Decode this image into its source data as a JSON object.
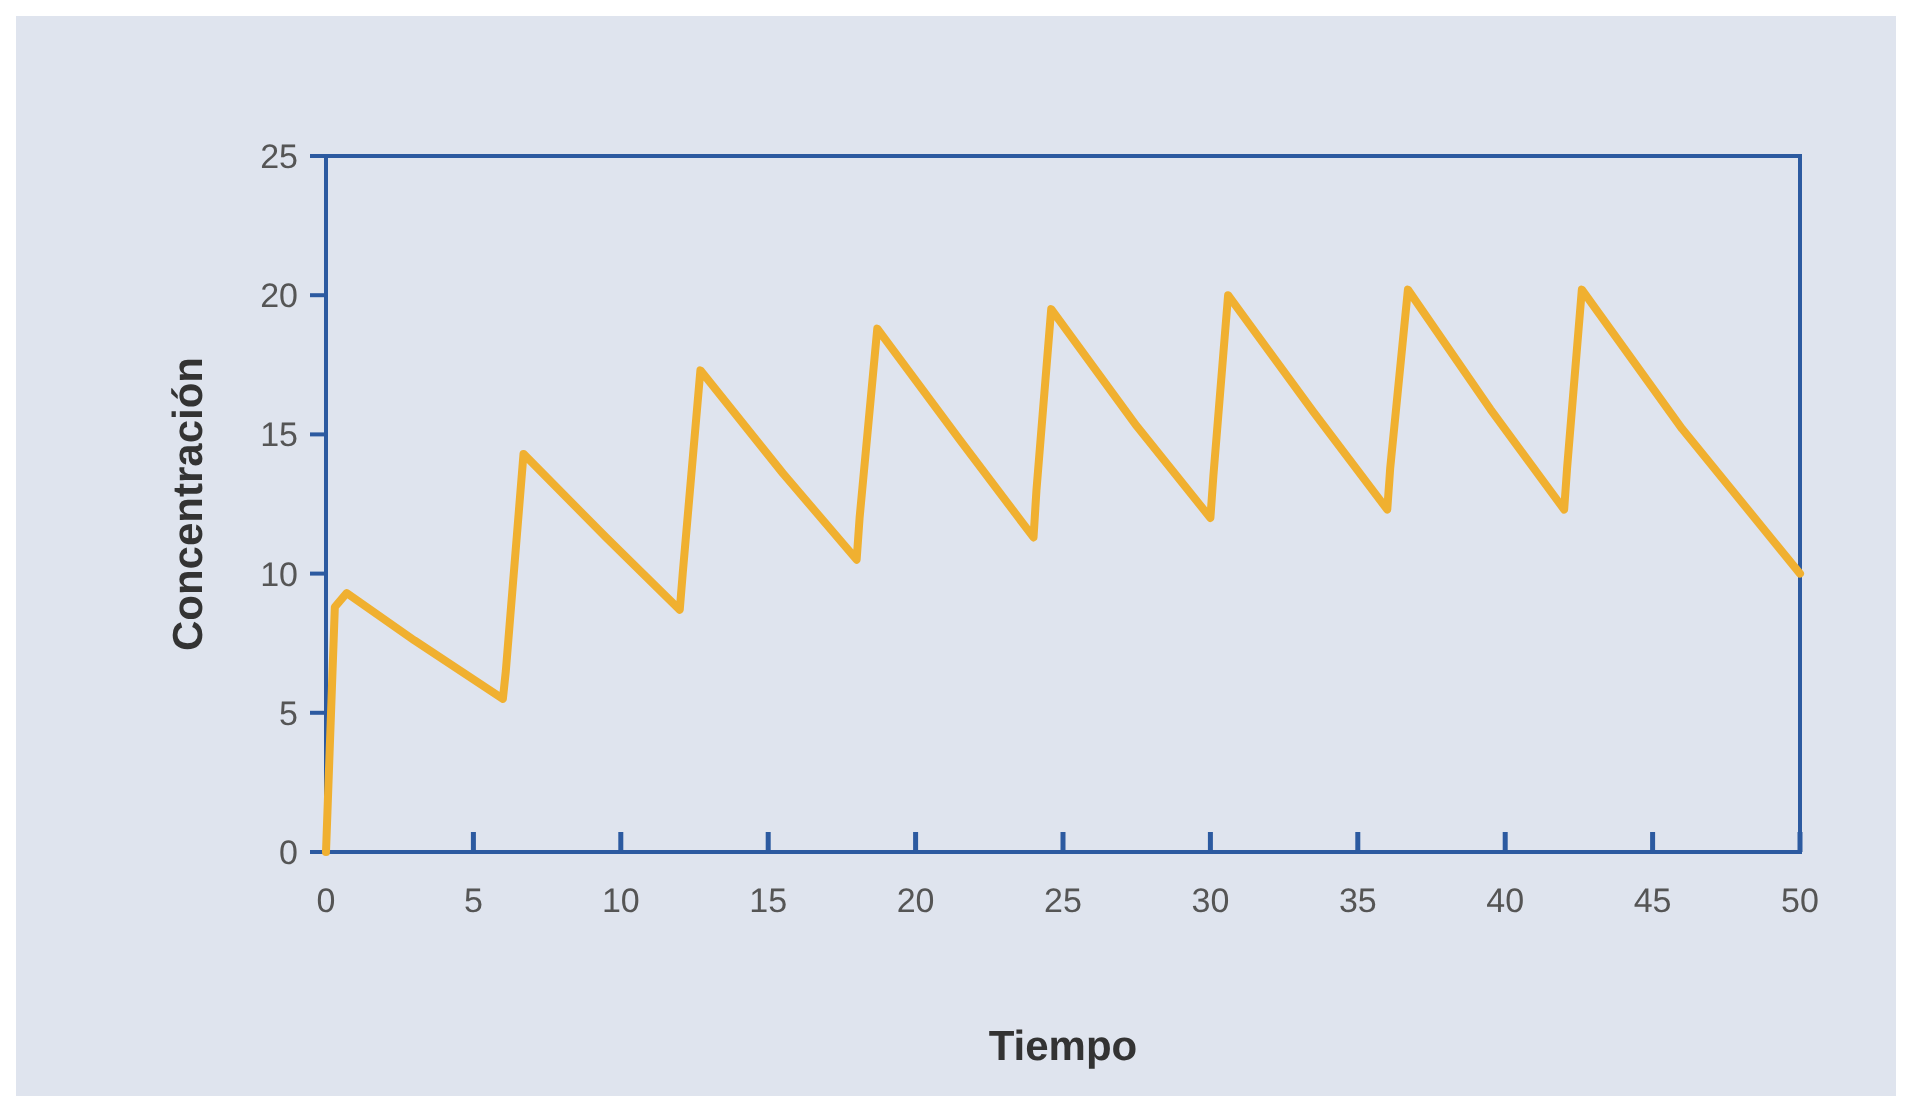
{
  "chart_data": {
    "type": "line",
    "xlabel": "Tiempo",
    "ylabel": "Concentración",
    "x": [
      0,
      0.3,
      0.7,
      3,
      6,
      6.1,
      6.7,
      9.5,
      12,
      12.1,
      12.7,
      15.5,
      18,
      18.1,
      18.7,
      21.5,
      24,
      24.1,
      24.6,
      27.5,
      30,
      30.1,
      30.6,
      33.5,
      36,
      36.1,
      36.7,
      39.5,
      42,
      42.1,
      42.6,
      46,
      50
    ],
    "series": [
      {
        "color": "#f0b030",
        "values": [
          0,
          8.8,
          9.3,
          7.6,
          5.5,
          6.5,
          14.3,
          11.3,
          8.7,
          10,
          17.3,
          13.6,
          10.5,
          12,
          18.8,
          14.8,
          11.3,
          13,
          19.5,
          15.3,
          12,
          13.5,
          20,
          15.8,
          12.3,
          13.8,
          20.2,
          15.9,
          12.3,
          13.8,
          20.2,
          15.2,
          10
        ]
      }
    ],
    "xlim": [
      0,
      50
    ],
    "xticks": [
      0,
      5,
      10,
      15,
      20,
      25,
      30,
      35,
      40,
      45,
      50
    ],
    "ylim": [
      0,
      25
    ],
    "yticks": [
      0,
      5,
      10,
      15,
      20,
      25
    ],
    "grid": false,
    "marker": "none",
    "line_style": "solid"
  }
}
